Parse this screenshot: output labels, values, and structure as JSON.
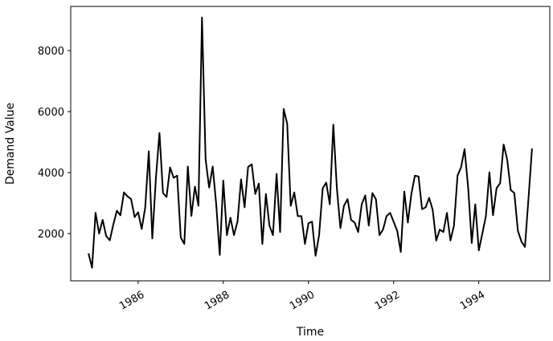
{
  "chart_data": {
    "type": "line",
    "title": "",
    "xlabel": "Time",
    "ylabel": "Demand Value",
    "x_ticks": [
      "1986",
      "1988",
      "1990",
      "1992",
      "1994"
    ],
    "y_ticks": [
      "2000",
      "4000",
      "6000",
      "8000"
    ],
    "xlim": [
      "1984-06",
      "1995-09"
    ],
    "ylim": [
      450,
      9450
    ],
    "grid": false,
    "line_color": "#000000",
    "x": [
      "1984-11",
      "1984-12",
      "1985-01",
      "1985-02",
      "1985-03",
      "1985-04",
      "1985-05",
      "1985-06",
      "1985-07",
      "1985-08",
      "1985-09",
      "1985-10",
      "1985-11",
      "1985-12",
      "1986-01",
      "1986-02",
      "1986-03",
      "1986-04",
      "1986-05",
      "1986-06",
      "1986-07",
      "1986-08",
      "1986-09",
      "1986-10",
      "1986-11",
      "1986-12",
      "1987-01",
      "1987-02",
      "1987-03",
      "1987-04",
      "1987-05",
      "1987-06",
      "1987-07",
      "1987-08",
      "1987-09",
      "1987-10",
      "1987-11",
      "1987-12",
      "1988-01",
      "1988-02",
      "1988-03",
      "1988-04",
      "1988-05",
      "1988-06",
      "1988-07",
      "1988-08",
      "1988-09",
      "1988-10",
      "1988-11",
      "1988-12",
      "1989-01",
      "1989-02",
      "1989-03",
      "1989-04",
      "1989-05",
      "1989-06",
      "1989-07",
      "1989-08",
      "1989-09",
      "1989-10",
      "1989-11",
      "1989-12",
      "1990-01",
      "1990-02",
      "1990-03",
      "1990-04",
      "1990-05",
      "1990-06",
      "1990-07",
      "1990-08",
      "1990-09",
      "1990-10",
      "1990-11",
      "1990-12",
      "1991-01",
      "1991-02",
      "1991-03",
      "1991-04",
      "1991-05",
      "1991-06",
      "1991-07",
      "1991-08",
      "1991-09",
      "1991-10",
      "1991-11",
      "1991-12",
      "1992-01",
      "1992-02",
      "1992-03",
      "1992-04",
      "1992-05",
      "1992-06",
      "1992-07",
      "1992-08",
      "1992-09",
      "1992-10",
      "1992-11",
      "1992-12",
      "1993-01",
      "1993-02",
      "1993-03",
      "1993-04",
      "1993-05",
      "1993-06",
      "1993-07",
      "1993-08",
      "1993-09",
      "1993-10",
      "1993-11",
      "1993-12",
      "1994-01",
      "1994-02",
      "1994-03",
      "1994-04",
      "1994-05",
      "1994-06",
      "1994-07",
      "1994-08",
      "1994-09",
      "1994-10",
      "1994-11",
      "1994-12",
      "1995-01",
      "1995-02",
      "1995-03",
      "1995-04"
    ],
    "values": [
      1350,
      880,
      2680,
      2000,
      2450,
      1920,
      1780,
      2300,
      2750,
      2600,
      3350,
      3220,
      3130,
      2540,
      2700,
      2150,
      2860,
      4700,
      1840,
      3830,
      5300,
      3330,
      3200,
      4170,
      3830,
      3900,
      1870,
      1660,
      4200,
      2580,
      3540,
      2910,
      9090,
      4430,
      3510,
      4200,
      2960,
      1300,
      3740,
      1950,
      2520,
      1950,
      2390,
      3780,
      2860,
      4190,
      4270,
      3300,
      3640,
      1660,
      3300,
      2260,
      1950,
      3960,
      2050,
      6090,
      5600,
      2910,
      3350,
      2570,
      2570,
      1660,
      2340,
      2390,
      1270,
      1950,
      3490,
      3670,
      2960,
      5570,
      3490,
      2180,
      2910,
      3130,
      2450,
      2360,
      2050,
      2960,
      3250,
      2260,
      3330,
      3130,
      1950,
      2130,
      2570,
      2680,
      2390,
      2090,
      1400,
      3380,
      2360,
      3300,
      3900,
      3870,
      2800,
      2860,
      3170,
      2780,
      1770,
      2130,
      2050,
      2680,
      1770,
      2260,
      3900,
      4170,
      4770,
      3490,
      1690,
      2960,
      1450,
      2000,
      2570,
      4010,
      2600,
      3490,
      3650,
      4920,
      4430,
      3430,
      3330,
      2090,
      1740,
      1560,
      3150,
      4790
    ]
  }
}
